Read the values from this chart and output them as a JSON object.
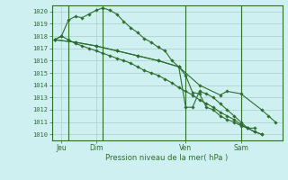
{
  "bg_color": "#cef0f0",
  "grid_color": "#aacccc",
  "line_color": "#2d6e2d",
  "ylabel_ticks": [
    1010,
    1011,
    1012,
    1013,
    1014,
    1015,
    1016,
    1017,
    1018,
    1019,
    1020
  ],
  "ylim": [
    1009.5,
    1020.5
  ],
  "xlabel": "Pression niveau de la mer( hPa )",
  "day_labels": [
    "Jeu",
    "Dim",
    "Ven",
    "Sam"
  ],
  "day_positions": [
    0.5,
    3.0,
    9.5,
    13.5
  ],
  "vline_positions": [
    1.0,
    3.5,
    9.5,
    13.5
  ],
  "xlim": [
    -0.2,
    16.5
  ],
  "series": [
    [
      0.0,
      1017.7,
      0.5,
      1018.0,
      1.0,
      1017.7,
      1.5,
      1017.4,
      2.0,
      1017.2,
      2.5,
      1017.0,
      3.0,
      1016.8,
      3.5,
      1016.6,
      4.0,
      1016.4,
      4.5,
      1016.2,
      5.0,
      1016.0,
      5.5,
      1015.8,
      6.0,
      1015.5,
      6.5,
      1015.2,
      7.0,
      1015.0,
      7.5,
      1014.8,
      8.0,
      1014.5,
      8.5,
      1014.2,
      9.0,
      1013.8,
      9.5,
      1013.5,
      10.0,
      1013.2,
      10.5,
      1012.8,
      11.0,
      1012.5,
      11.5,
      1012.2,
      12.0,
      1011.8,
      12.5,
      1011.5,
      13.0,
      1011.2,
      13.5,
      1010.8,
      14.0,
      1010.5,
      14.5,
      1010.2,
      15.0,
      1010.0
    ],
    [
      0.0,
      1017.7,
      0.5,
      1018.0,
      1.0,
      1019.3,
      1.5,
      1019.6,
      2.0,
      1019.5,
      2.5,
      1019.8,
      3.0,
      1020.1,
      3.5,
      1020.3,
      4.0,
      1020.1,
      4.5,
      1019.8,
      5.0,
      1019.2,
      5.5,
      1018.7,
      6.0,
      1018.3,
      6.5,
      1017.8,
      7.0,
      1017.5,
      7.5,
      1017.1,
      8.0,
      1016.8,
      8.5,
      1016.0,
      9.0,
      1015.5,
      9.5,
      1014.8,
      10.0,
      1013.4,
      10.5,
      1013.3,
      11.0,
      1012.2,
      11.5,
      1012.0,
      12.0,
      1011.5,
      12.5,
      1011.2,
      13.0,
      1011.0,
      13.5,
      1010.7,
      14.0,
      1010.5,
      14.5,
      1010.5
    ],
    [
      0.0,
      1017.7,
      1.5,
      1017.5,
      3.0,
      1017.2,
      4.5,
      1016.8,
      6.0,
      1016.4,
      7.5,
      1016.0,
      9.0,
      1015.5,
      9.5,
      1012.2,
      10.0,
      1012.2,
      10.5,
      1013.5,
      11.0,
      1013.3,
      11.5,
      1013.0,
      12.0,
      1012.5,
      12.5,
      1012.0,
      13.0,
      1011.5,
      13.5,
      1011.0,
      14.0,
      1010.5,
      14.5,
      1010.2,
      15.0,
      1010.0
    ],
    [
      0.0,
      1017.7,
      1.5,
      1017.5,
      3.0,
      1017.2,
      4.5,
      1016.8,
      6.0,
      1016.4,
      7.5,
      1016.0,
      9.0,
      1015.5,
      10.5,
      1014.0,
      12.0,
      1013.2,
      12.5,
      1013.5,
      13.5,
      1013.3,
      15.0,
      1012.0,
      15.5,
      1011.5,
      16.0,
      1011.0
    ]
  ]
}
